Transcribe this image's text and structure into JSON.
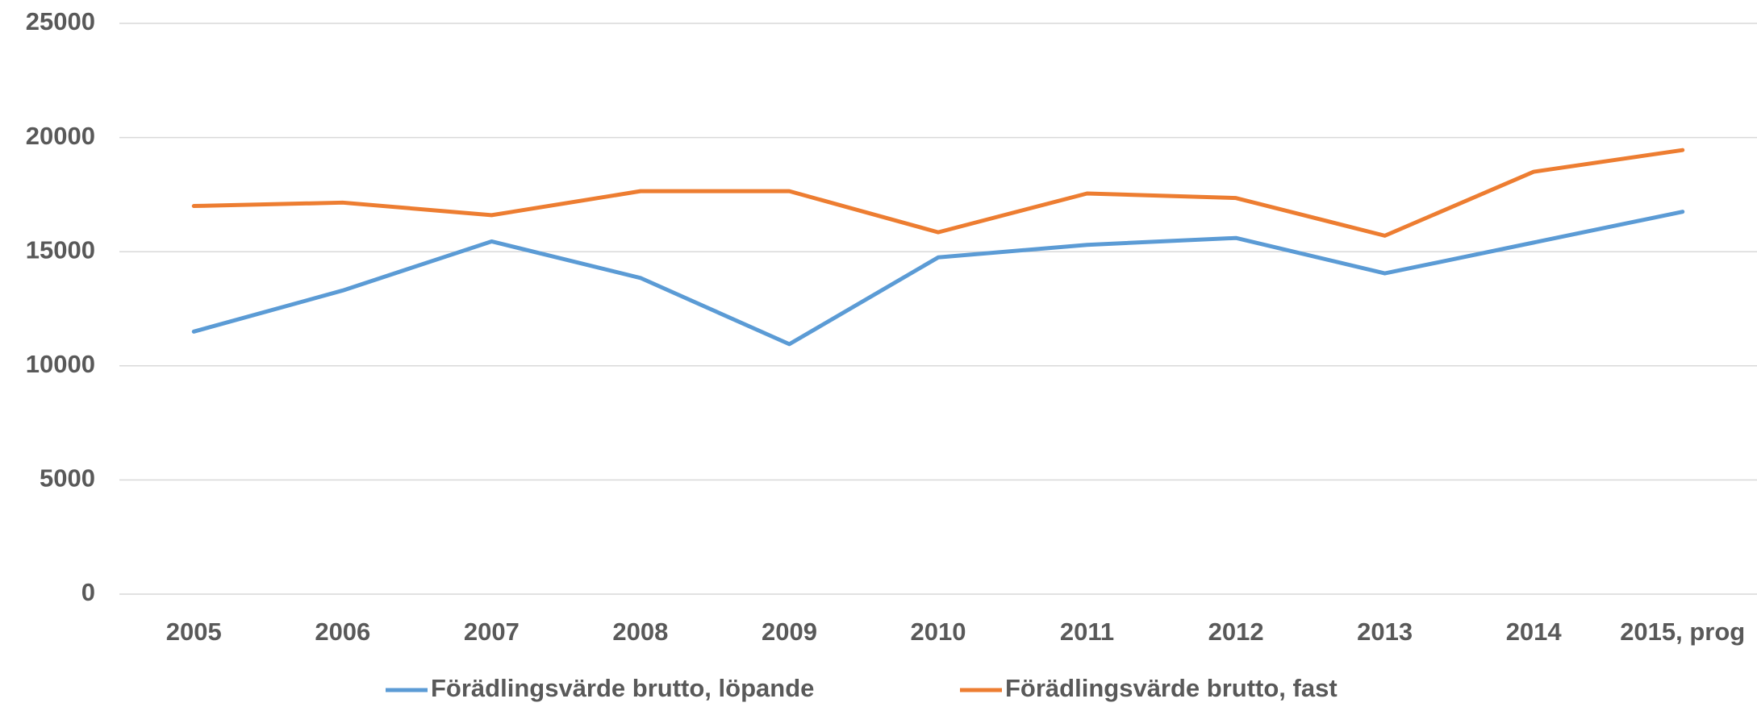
{
  "chart_data": {
    "type": "line",
    "categories": [
      "2005",
      "2006",
      "2007",
      "2008",
      "2009",
      "2010",
      "2011",
      "2012",
      "2013",
      "2014",
      "2015, prog"
    ],
    "series": [
      {
        "name": "Förädlingsvärde brutto, löpande",
        "color": "#5b9bd5",
        "values": [
          11500,
          13300,
          15450,
          13850,
          10950,
          14750,
          15300,
          15600,
          14050,
          15400,
          16750
        ]
      },
      {
        "name": "Förädlingsvärde brutto, fast",
        "color": "#ed7d31",
        "values": [
          17000,
          17150,
          16600,
          17650,
          17650,
          15850,
          17550,
          17350,
          15700,
          18500,
          19450
        ]
      }
    ],
    "ylim": [
      0,
      25000
    ],
    "yticks": [
      0,
      5000,
      10000,
      15000,
      20000,
      25000
    ],
    "grid": true
  }
}
